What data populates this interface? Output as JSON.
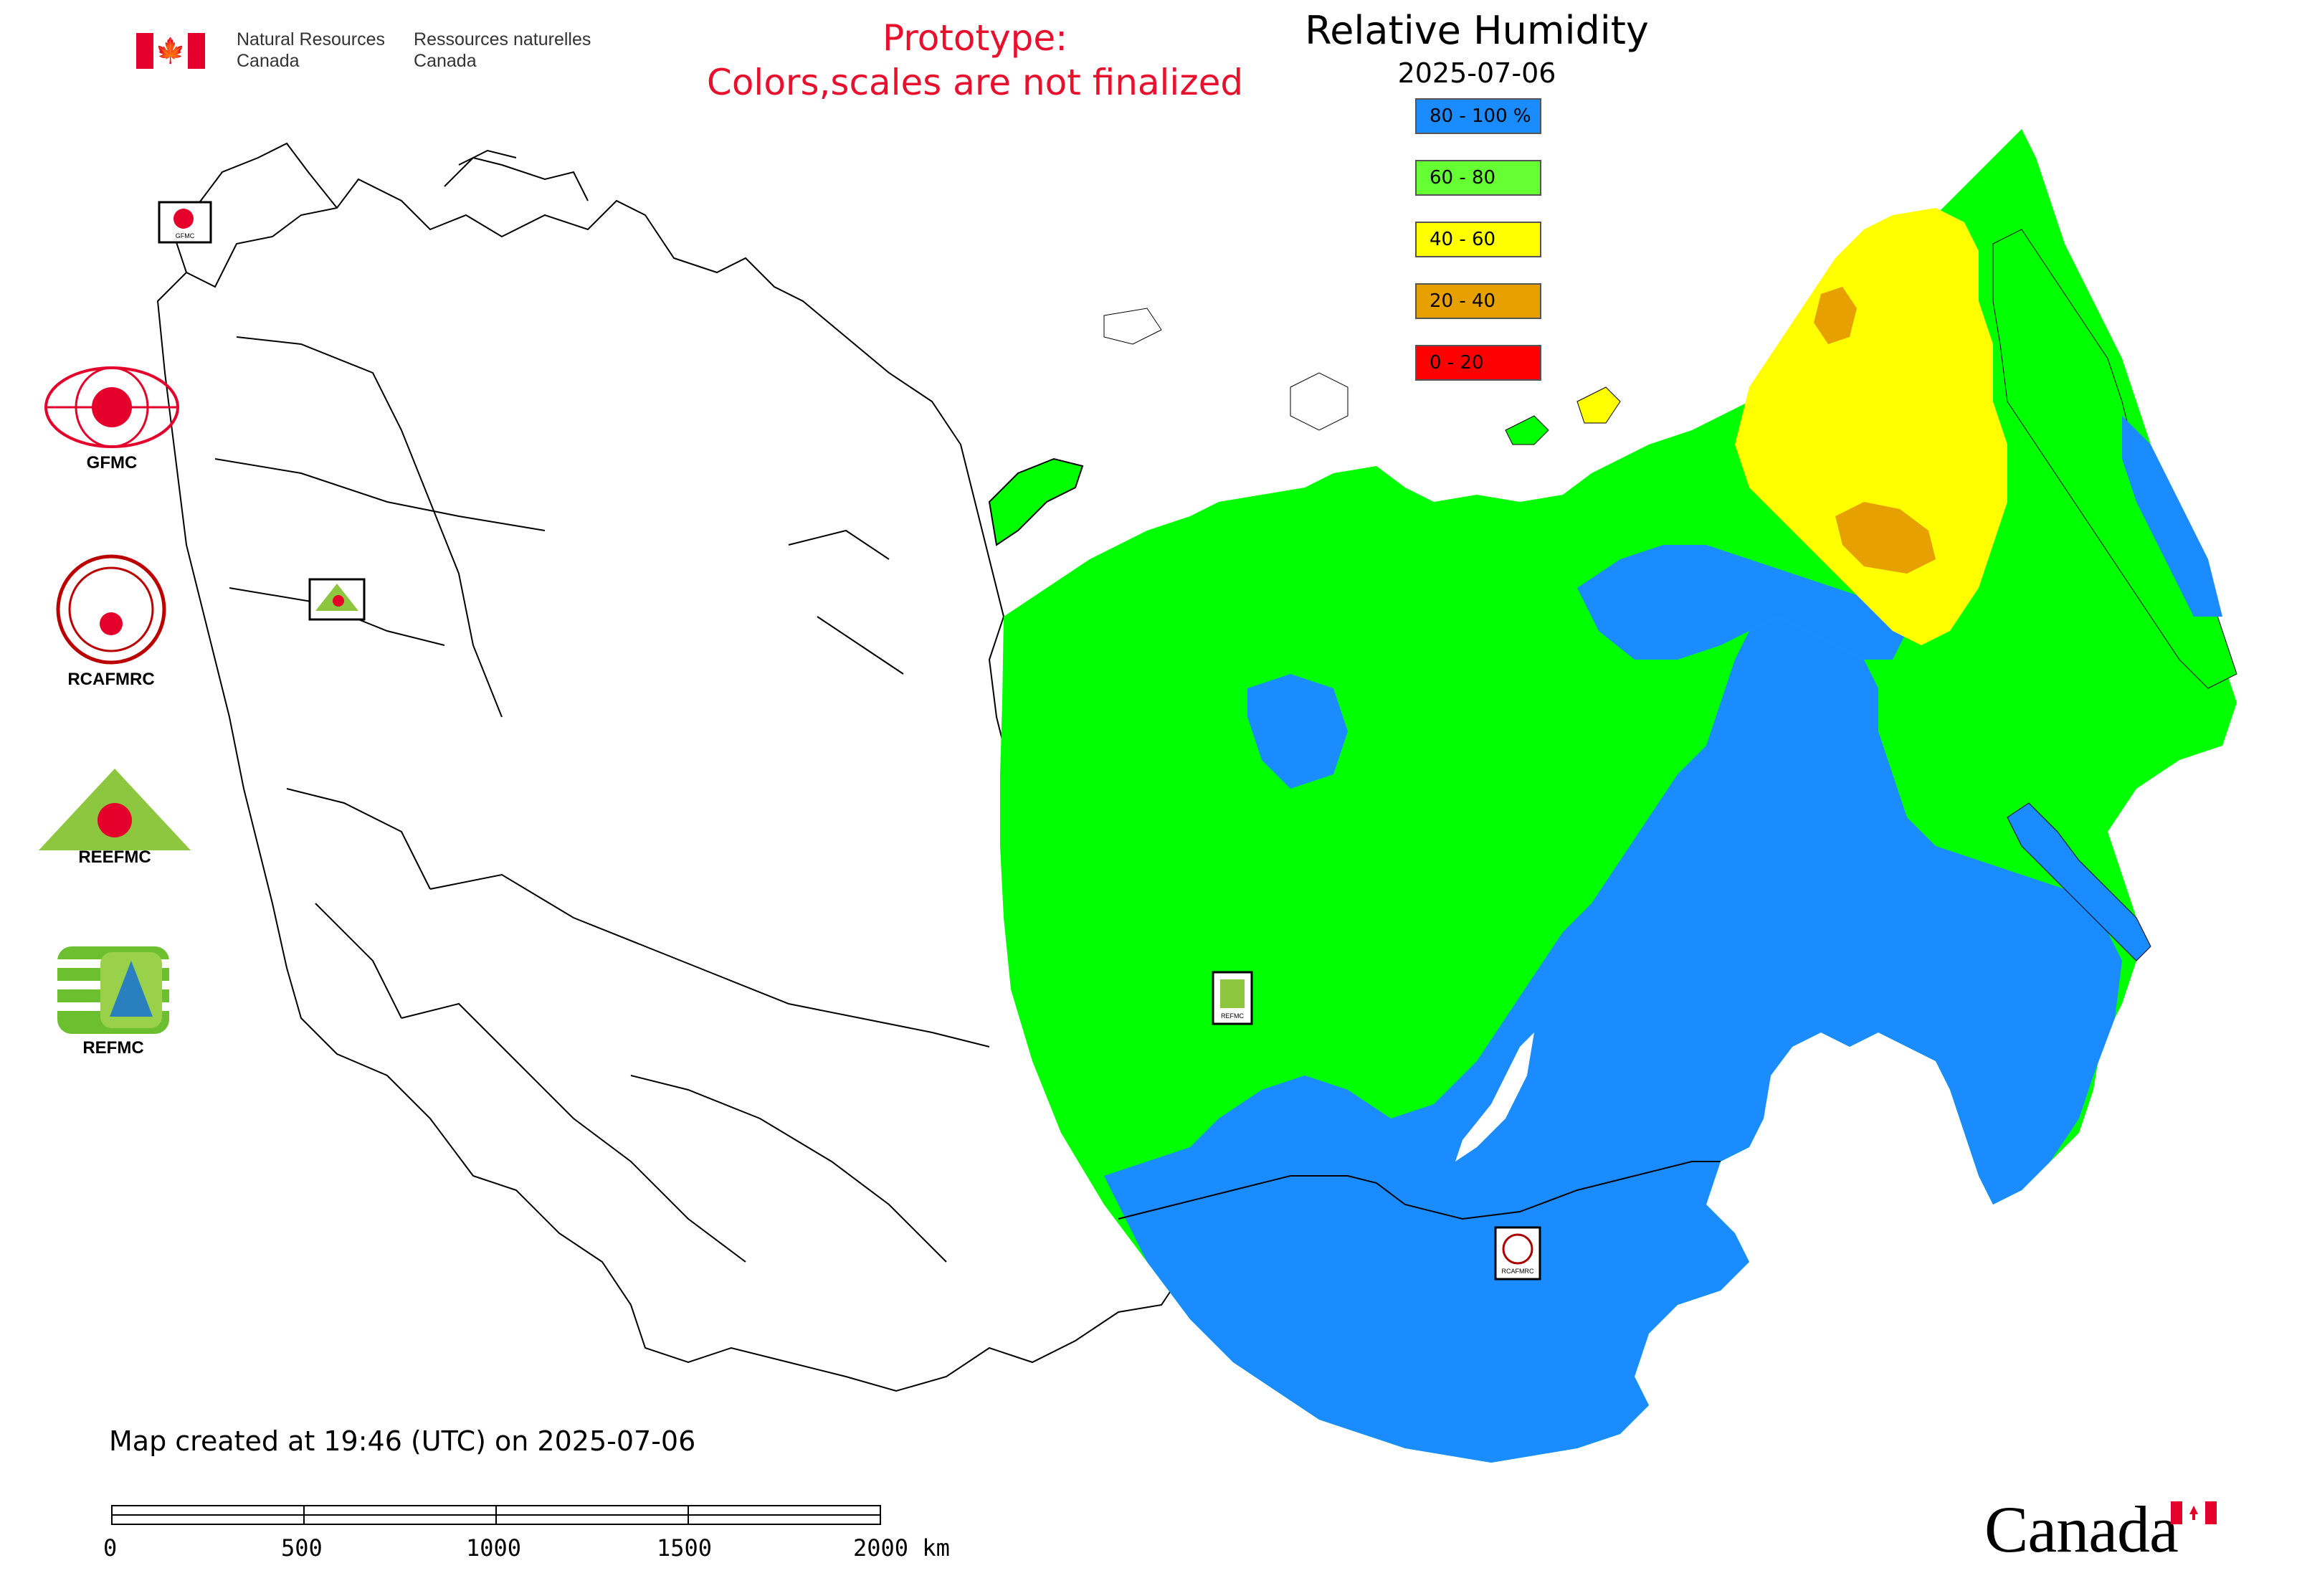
{
  "header": {
    "department_en": [
      "Natural Resources",
      "Canada"
    ],
    "department_fr": [
      "Ressources naturelles",
      "Canada"
    ]
  },
  "prototype_notice": [
    "Prototype:",
    "Colors,scales are not finalized"
  ],
  "map": {
    "title": "Relative Humidity",
    "date": "2025-07-06"
  },
  "legend": [
    {
      "label": "80 - 100 %",
      "color": "#1a8cff"
    },
    {
      "label": "60 - 80",
      "color": "#66ff33"
    },
    {
      "label": "40 - 60",
      "color": "#ffff00"
    },
    {
      "label": "20 - 40",
      "color": "#e6a000"
    },
    {
      "label": "0 - 20",
      "color": "#ff0000"
    }
  ],
  "organizations": [
    {
      "label": "GFMC",
      "icon": "gfmc-logo-icon"
    },
    {
      "label": "RCAFMRC",
      "icon": "rcafmrc-logo-icon"
    },
    {
      "label": "",
      "icon": "reefmc-logo-icon",
      "logo_text": "REEFMC"
    },
    {
      "label": "REFMC",
      "icon": "refmc-logo-icon"
    }
  ],
  "map_markers": [
    {
      "label": "GFMC",
      "icon": "gfmc-marker-icon"
    },
    {
      "label": "REEFMC",
      "icon": "reefmc-marker-icon"
    },
    {
      "label": "REFMC",
      "icon": "refmc-marker-icon"
    },
    {
      "label": "RCAFMRC",
      "icon": "rcafmrc-marker-icon"
    }
  ],
  "footer": {
    "created": "Map created at 19:46 (UTC) on 2025-07-06",
    "scale_labels": [
      "0",
      "500",
      "1000",
      "1500",
      "2000 km"
    ],
    "wordmark": "Canada"
  },
  "colors": {
    "humid_blue": "#1a8cff",
    "green": "#00ff00",
    "yellow": "#ffff00",
    "orange": "#e6a000",
    "red": "#ff0000",
    "notice_red": "#e8112d"
  }
}
